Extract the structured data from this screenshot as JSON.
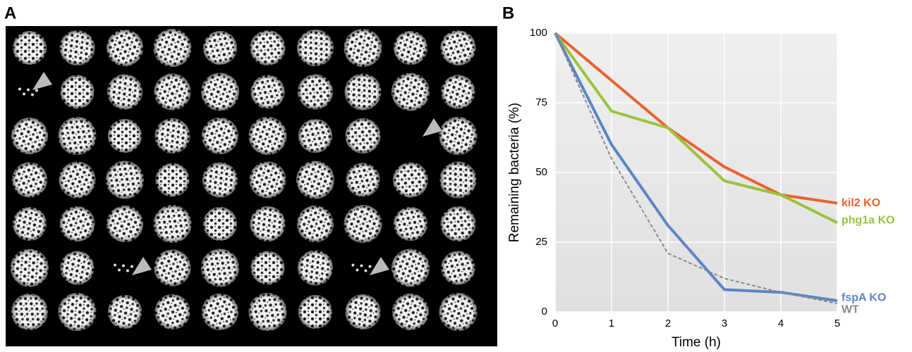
{
  "panel_labels": [
    "A",
    "B"
  ],
  "chart_data": {
    "type": "line",
    "xlabel": "Time (h)",
    "ylabel": "Remaining bacteria (%)",
    "x": [
      0,
      1,
      2,
      3,
      4,
      5
    ],
    "xlim": [
      0,
      5
    ],
    "xticks": [
      0,
      1,
      2,
      3,
      4,
      5
    ],
    "ylim": [
      0,
      100
    ],
    "yticks": [
      0,
      25,
      50,
      75,
      100
    ],
    "grid": true,
    "series": [
      {
        "name": "kil2 KO",
        "color": "#e8622d",
        "dash": false,
        "values": [
          100,
          83,
          66,
          52,
          42,
          39
        ]
      },
      {
        "name": "phg1a KO",
        "color": "#9ac23c",
        "dash": false,
        "values": [
          100,
          72,
          66,
          47,
          42,
          32
        ]
      },
      {
        "name": "fspA KO",
        "color": "#5b86c5",
        "dash": false,
        "values": [
          100,
          60,
          31,
          8,
          7,
          4
        ]
      },
      {
        "name": "WT",
        "color": "#8a8a8a",
        "dash": true,
        "values": [
          100,
          55,
          21,
          12,
          7,
          3
        ]
      }
    ]
  }
}
